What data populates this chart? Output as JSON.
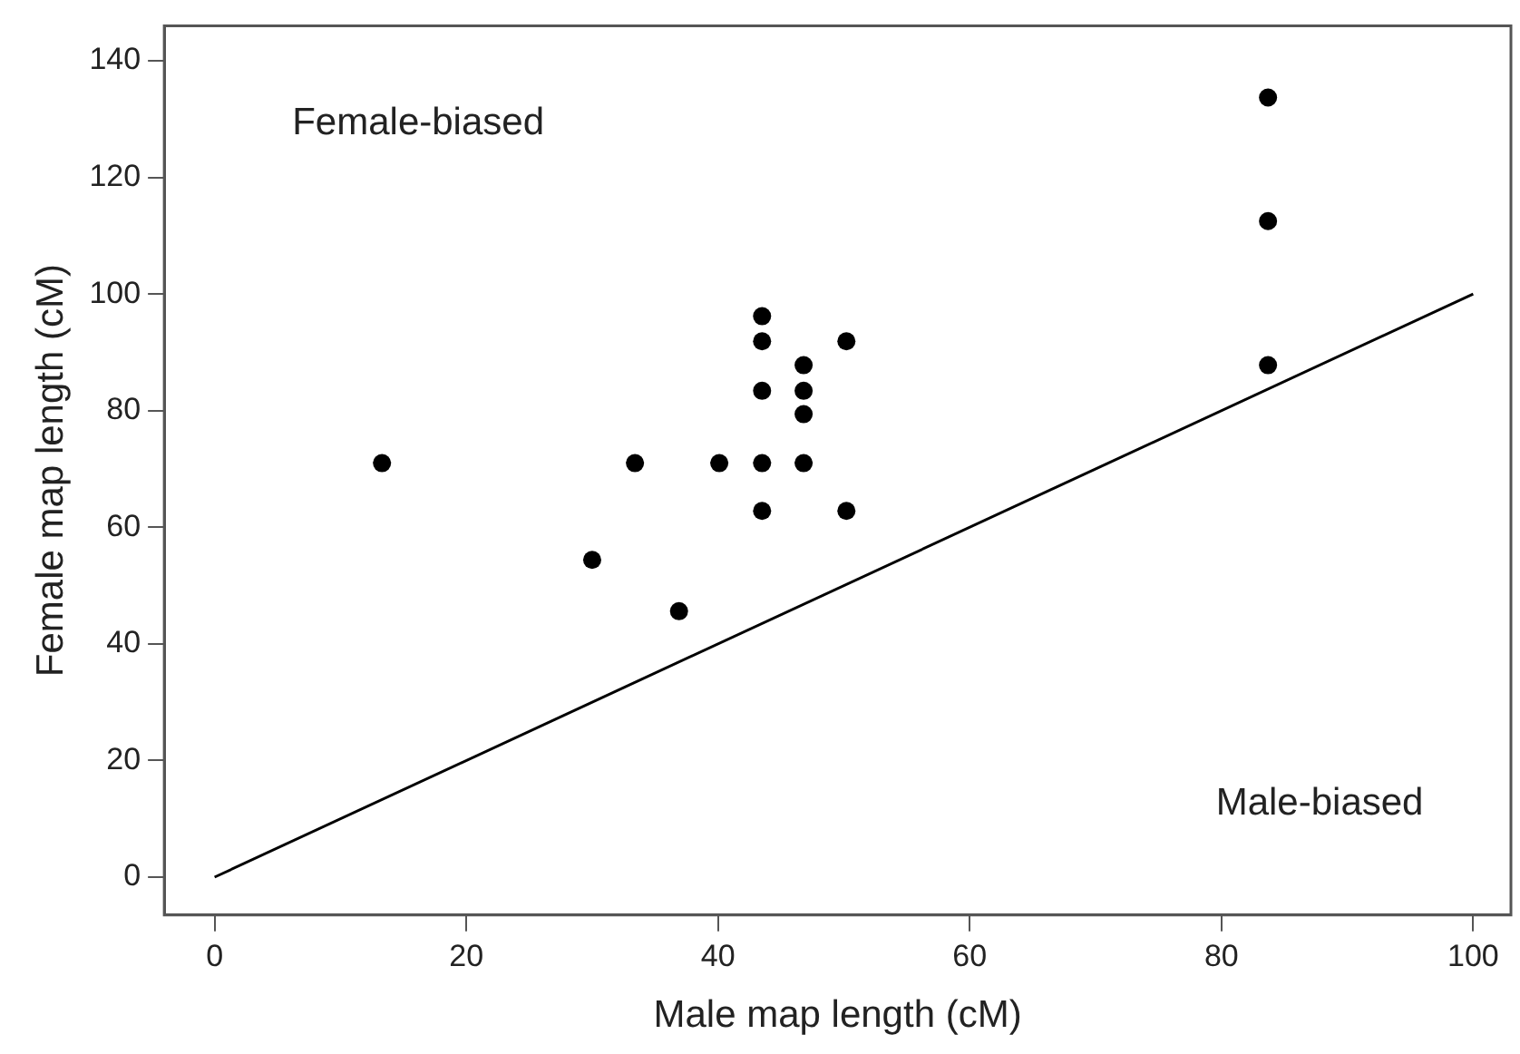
{
  "chart_data": {
    "type": "scatter",
    "xlabel": "Male map length (cM)",
    "ylabel": "Female map length (cM)",
    "annotations": [
      "Female-biased",
      "Male-biased"
    ],
    "xlim": [
      -4,
      103
    ],
    "ylim": [
      -6.5,
      146
    ],
    "xticks": [
      0,
      20,
      40,
      60,
      80,
      100
    ],
    "yticks": [
      0,
      20,
      40,
      60,
      80,
      100,
      120,
      140
    ],
    "grid": false,
    "legend": false,
    "marker": "circle",
    "series": [
      {
        "type": "scatter",
        "color": "#000000",
        "x": [
          13.3,
          33.4,
          30,
          36.9,
          40.1,
          43.5,
          43.5,
          43.5,
          43.5,
          43.5,
          46.8,
          46.8,
          46.8,
          46.8,
          50.2,
          50.2,
          83.7,
          83.7,
          83.7
        ],
        "values": [
          71,
          71,
          54.4,
          45.6,
          71,
          96.2,
          91.9,
          83.4,
          71,
          62.8,
          87.8,
          83.4,
          79.4,
          71,
          91.9,
          62.8,
          133.7,
          112.5,
          87.8
        ]
      },
      {
        "type": "line",
        "color": "#000000",
        "marker": "none",
        "line_style": "solid",
        "x": [
          0,
          100
        ],
        "values": [
          0,
          100
        ]
      }
    ]
  }
}
